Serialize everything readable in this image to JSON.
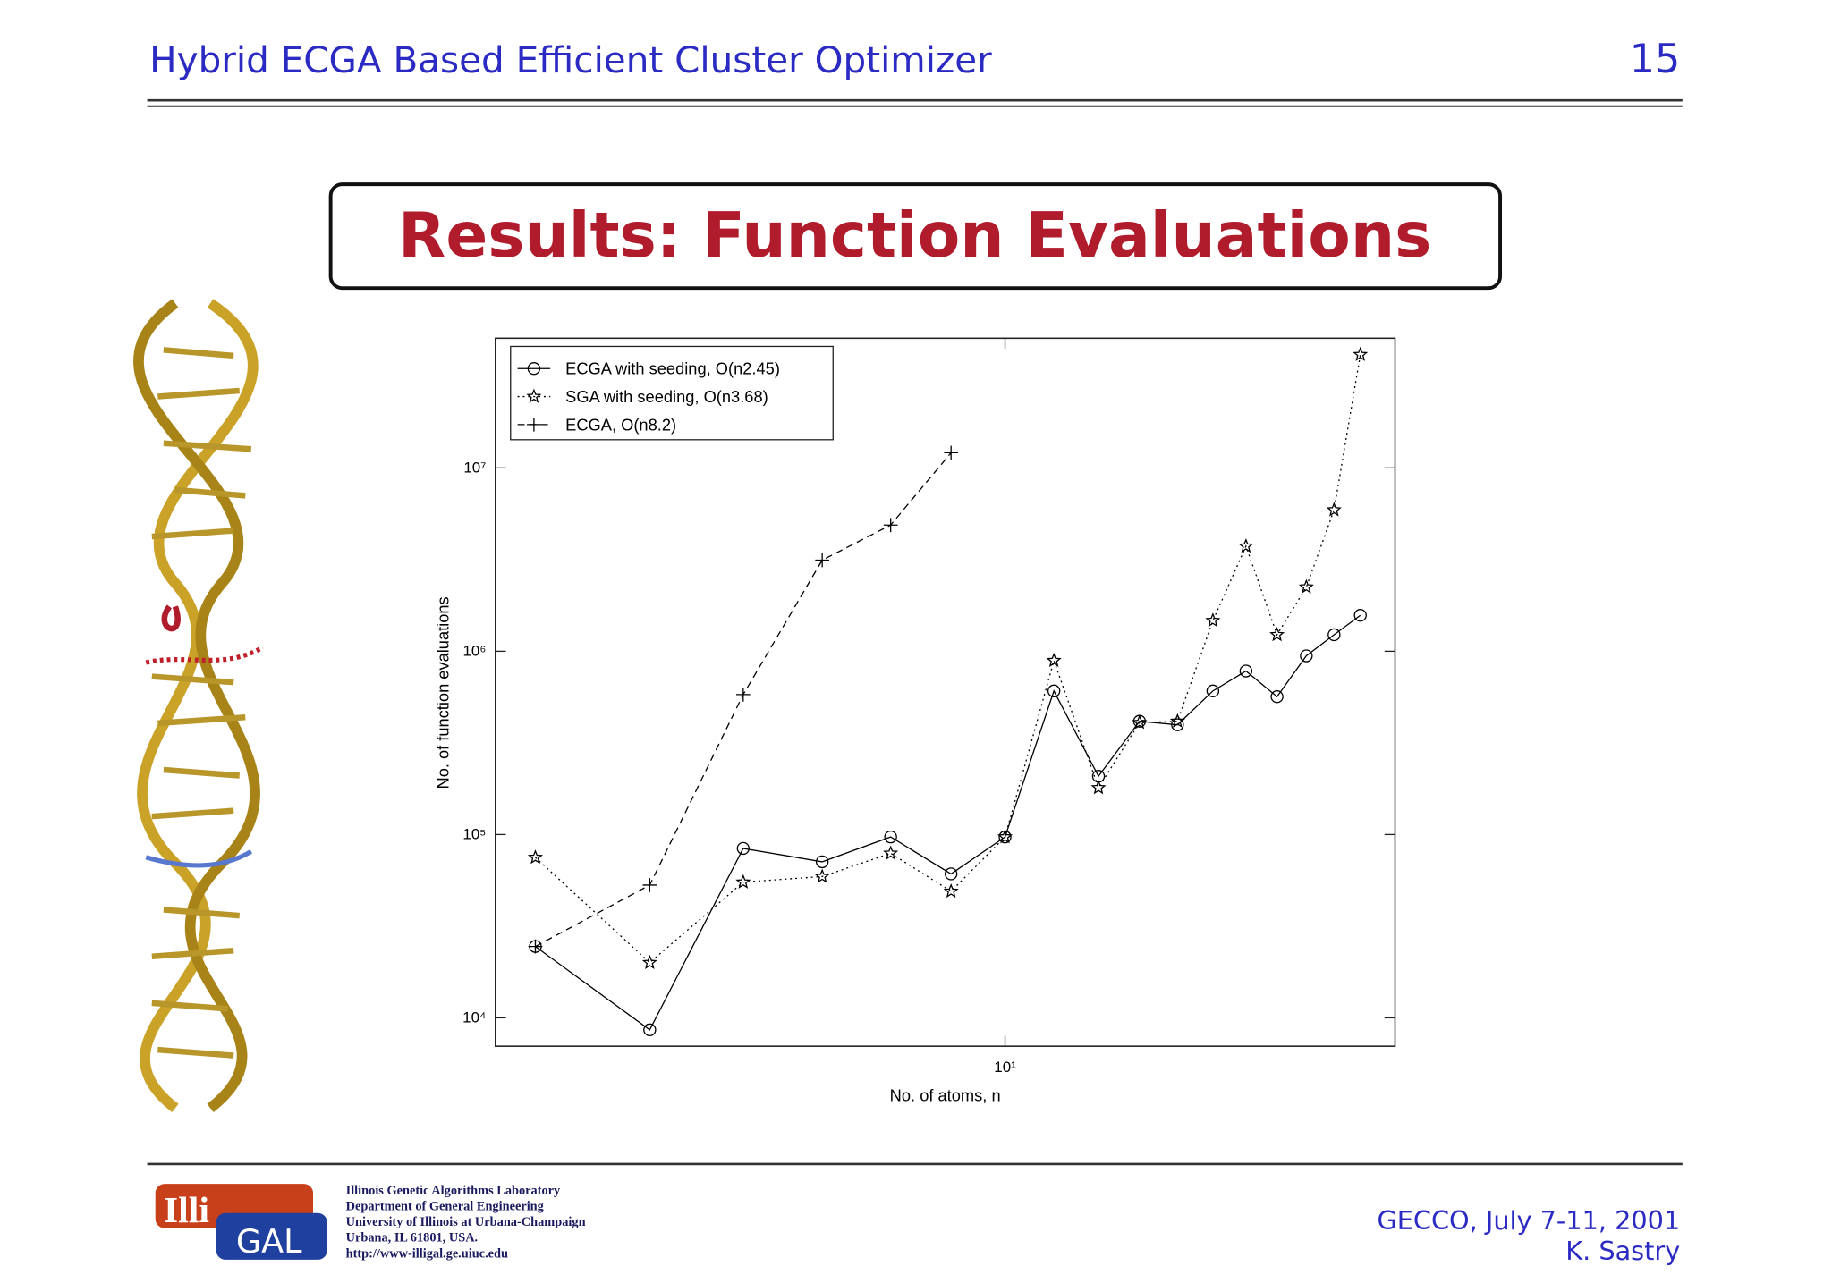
{
  "header": {
    "title": "Hybrid ECGA Based Efficient Cluster Optimizer",
    "page": "15"
  },
  "slide_title": "Results: Function Evaluations",
  "footer": {
    "lab_lines": [
      "Illinois Genetic Algorithms Laboratory",
      "Department of General Engineering",
      "University of Illinois at Urbana-Champaign",
      "Urbana, IL 61801, USA.",
      "http://www-illigal.ge.uiuc.edu"
    ],
    "conference": "GECCO, July 7-11, 2001",
    "author": "K. Sastry"
  },
  "logo": {
    "left": "Illi",
    "right": "GAL"
  },
  "chart_data": {
    "type": "line",
    "x_label": "No. of atoms, n",
    "y_label": "No. of function evaluations",
    "x": [
      4,
      5,
      6,
      7,
      8,
      9,
      10,
      11,
      12,
      13,
      14,
      15,
      16,
      17,
      18,
      19,
      20
    ],
    "xscale": "log",
    "yscale": "log",
    "xlim": [
      3.7,
      21.4
    ],
    "ylim": [
      7000,
      51000000
    ],
    "xticks": [
      {
        "value": 10,
        "label": "10¹"
      }
    ],
    "yticks": [
      {
        "value": 10000,
        "label": "10⁴"
      },
      {
        "value": 100000,
        "label": "10⁵"
      },
      {
        "value": 1000000,
        "label": "10⁶"
      },
      {
        "value": 10000000,
        "label": "10⁷"
      }
    ],
    "legend": "upper left",
    "series": [
      {
        "name": "ECGA with seeding, O(n2.45)",
        "color": "#000000",
        "line_style": "solid",
        "marker": "circle",
        "values": [
          24500,
          8600,
          84000,
          71000,
          97000,
          61000,
          97000,
          607000,
          208000,
          415000,
          397000,
          607000,
          780000,
          565000,
          944000,
          1230000,
          1570000
        ]
      },
      {
        "name": "SGA with seeding, O(n3.68)",
        "color": "#000000",
        "line_style": "dotted",
        "marker": "star",
        "values": [
          75000,
          20000,
          55000,
          59000,
          79000,
          49000,
          97000,
          889000,
          180000,
          408000,
          415000,
          1470000,
          3740000,
          1230000,
          2240000,
          5900000,
          41500000
        ]
      },
      {
        "name": "ECGA, O(n8.2)",
        "color": "#000000",
        "line_style": "dashed",
        "marker": "plus",
        "values": [
          24500,
          53000,
          580000,
          3140000,
          4880000,
          12100000,
          null,
          null,
          null,
          null,
          null,
          null,
          null,
          null,
          null,
          null,
          null
        ]
      }
    ]
  }
}
